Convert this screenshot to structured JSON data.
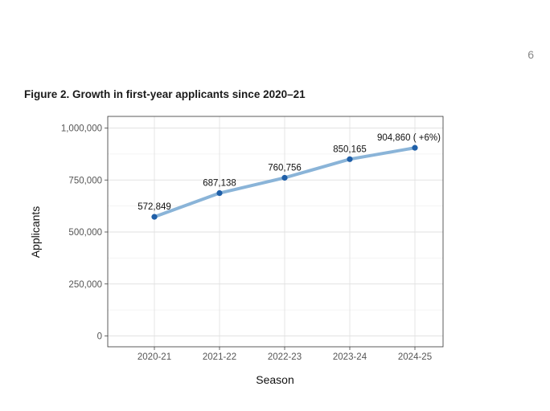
{
  "page": {
    "number": "6"
  },
  "figure": {
    "title": "Figure 2. Growth in first-year applicants since 2020–21"
  },
  "chart_data": {
    "type": "line",
    "categories": [
      "2020-21",
      "2021-22",
      "2022-23",
      "2023-24",
      "2024-25"
    ],
    "values": [
      572849,
      687138,
      760756,
      850165,
      904860
    ],
    "data_labels": [
      "572,849",
      "687,138",
      "760,756",
      "850,165",
      "904,860 ( +6%)"
    ],
    "xlabel": "Season",
    "ylabel": "Applicants",
    "ylim": [
      0,
      1000000
    ],
    "yticks": [
      0,
      250000,
      500000,
      750000,
      1000000
    ],
    "ytick_labels": [
      "0",
      "250,000",
      "500,000",
      "750,000",
      "1,000,000"
    ],
    "grid": true,
    "legend": "none",
    "colors": {
      "line": "#8ab4d8",
      "point": "#1f5fa8"
    }
  }
}
